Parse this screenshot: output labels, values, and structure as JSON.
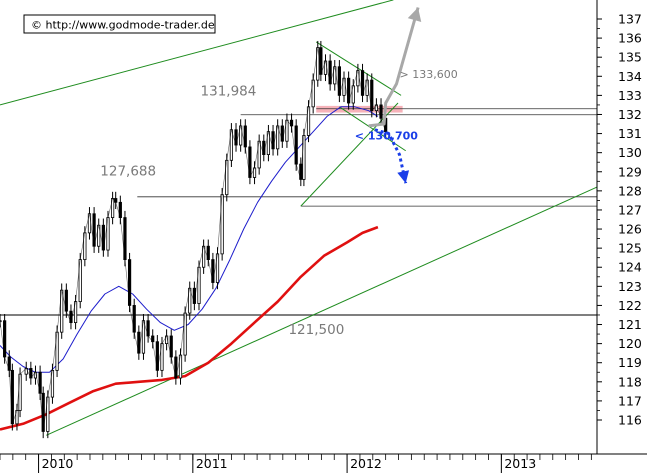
{
  "chart_data": {
    "type": "line",
    "title": "",
    "source_label": "© http://www.godmode-trader.de",
    "xlabel": "",
    "ylabel": "",
    "x_ticks": [
      "2010",
      "2011",
      "2012",
      "2013"
    ],
    "y_ticks": [
      116,
      117,
      118,
      119,
      120,
      121,
      122,
      123,
      124,
      125,
      126,
      127,
      128,
      129,
      130,
      131,
      132,
      133,
      134,
      135,
      136,
      137
    ],
    "ylim": [
      115.2,
      137.7
    ],
    "xlim": [
      2009.75,
      2013.62
    ],
    "y_axis_side": "right",
    "grid": false,
    "colors": {
      "price": "#000000",
      "ma_blue": "#1d1dcc",
      "ma_red": "#e01010",
      "trendline": "#1f8c1f",
      "horizontal": "#333333",
      "resistance_zone": "#f4a4ad",
      "arrow_up": "#a8a8a8",
      "arrow_down": "#1a3ee8",
      "annotation_gray": "#7a7a7a",
      "annotation_blue": "#1a3ee8"
    },
    "price_path": [
      [
        2009.75,
        121.2
      ],
      [
        2009.78,
        119.3
      ],
      [
        2009.81,
        118.6
      ],
      [
        2009.83,
        115.8
      ],
      [
        2009.86,
        116.5
      ],
      [
        2009.88,
        118.4
      ],
      [
        2009.92,
        118.7
      ],
      [
        2009.95,
        118.2
      ],
      [
        2009.98,
        118.5
      ],
      [
        2010.01,
        117.4
      ],
      [
        2010.03,
        115.4
      ],
      [
        2010.06,
        117.2
      ],
      [
        2010.09,
        118.6
      ],
      [
        2010.12,
        120.6
      ],
      [
        2010.15,
        122.8
      ],
      [
        2010.18,
        121.7
      ],
      [
        2010.21,
        121.1
      ],
      [
        2010.24,
        122.2
      ],
      [
        2010.27,
        124.4
      ],
      [
        2010.3,
        125.8
      ],
      [
        2010.33,
        126.8
      ],
      [
        2010.36,
        125.1
      ],
      [
        2010.39,
        126.2
      ],
      [
        2010.42,
        124.9
      ],
      [
        2010.45,
        126.6
      ],
      [
        2010.48,
        127.6
      ],
      [
        2010.5,
        127.4
      ],
      [
        2010.53,
        126.6
      ],
      [
        2010.56,
        124.4
      ],
      [
        2010.59,
        122.0
      ],
      [
        2010.62,
        120.6
      ],
      [
        2010.65,
        119.5
      ],
      [
        2010.68,
        121.2
      ],
      [
        2010.71,
        120.4
      ],
      [
        2010.74,
        120.1
      ],
      [
        2010.77,
        118.6
      ],
      [
        2010.8,
        120.0
      ],
      [
        2010.83,
        120.4
      ],
      [
        2010.86,
        119.3
      ],
      [
        2010.89,
        118.2
      ],
      [
        2010.92,
        119.4
      ],
      [
        2010.95,
        121.6
      ],
      [
        2010.98,
        122.9
      ],
      [
        2011.01,
        122.1
      ],
      [
        2011.04,
        124.0
      ],
      [
        2011.07,
        125.1
      ],
      [
        2011.1,
        124.4
      ],
      [
        2011.13,
        123.2
      ],
      [
        2011.16,
        124.7
      ],
      [
        2011.19,
        127.8
      ],
      [
        2011.22,
        129.6
      ],
      [
        2011.25,
        131.2
      ],
      [
        2011.28,
        130.4
      ],
      [
        2011.31,
        131.4
      ],
      [
        2011.34,
        130.3
      ],
      [
        2011.37,
        128.7
      ],
      [
        2011.4,
        129.2
      ],
      [
        2011.43,
        130.6
      ],
      [
        2011.46,
        129.9
      ],
      [
        2011.49,
        131.1
      ],
      [
        2011.52,
        130.2
      ],
      [
        2011.55,
        131.4
      ],
      [
        2011.58,
        130.6
      ],
      [
        2011.61,
        131.7
      ],
      [
        2011.64,
        131.4
      ],
      [
        2011.67,
        129.4
      ],
      [
        2011.7,
        128.6
      ],
      [
        2011.72,
        130.9
      ],
      [
        2011.75,
        132.4
      ],
      [
        2011.78,
        133.8
      ],
      [
        2011.81,
        135.5
      ],
      [
        2011.83,
        134.1
      ],
      [
        2011.86,
        134.8
      ],
      [
        2011.89,
        133.6
      ],
      [
        2011.92,
        134.5
      ],
      [
        2011.95,
        133.0
      ],
      [
        2011.98,
        133.9
      ],
      [
        2012.01,
        132.6
      ],
      [
        2012.04,
        133.5
      ],
      [
        2012.07,
        134.3
      ],
      [
        2012.1,
        133.0
      ],
      [
        2012.13,
        133.8
      ],
      [
        2012.16,
        132.2
      ],
      [
        2012.19,
        132.5
      ],
      [
        2012.22,
        131.8
      ],
      [
        2012.25,
        131.1
      ]
    ],
    "ma_blue_path": [
      [
        2009.75,
        119.9
      ],
      [
        2009.82,
        119.3
      ],
      [
        2009.9,
        118.8
      ],
      [
        2009.98,
        118.5
      ],
      [
        2010.07,
        118.5
      ],
      [
        2010.16,
        119.2
      ],
      [
        2010.25,
        120.5
      ],
      [
        2010.34,
        121.7
      ],
      [
        2010.43,
        122.6
      ],
      [
        2010.52,
        123.0
      ],
      [
        2010.61,
        122.6
      ],
      [
        2010.7,
        121.8
      ],
      [
        2010.79,
        121.1
      ],
      [
        2010.88,
        120.7
      ],
      [
        2010.97,
        121.0
      ],
      [
        2011.06,
        121.8
      ],
      [
        2011.15,
        122.9
      ],
      [
        2011.24,
        124.4
      ],
      [
        2011.33,
        126.0
      ],
      [
        2011.42,
        127.4
      ],
      [
        2011.51,
        128.5
      ],
      [
        2011.6,
        129.5
      ],
      [
        2011.69,
        130.3
      ],
      [
        2011.78,
        131.1
      ],
      [
        2011.87,
        131.9
      ],
      [
        2011.96,
        132.4
      ],
      [
        2012.05,
        132.4
      ],
      [
        2012.14,
        132.2
      ],
      [
        2012.2,
        131.9
      ]
    ],
    "ma_red_path": [
      [
        2009.75,
        115.5
      ],
      [
        2009.9,
        115.8
      ],
      [
        2010.05,
        116.3
      ],
      [
        2010.2,
        116.9
      ],
      [
        2010.35,
        117.5
      ],
      [
        2010.5,
        117.9
      ],
      [
        2010.65,
        118.0
      ],
      [
        2010.8,
        118.1
      ],
      [
        2010.95,
        118.3
      ],
      [
        2011.1,
        119.0
      ],
      [
        2011.25,
        120.0
      ],
      [
        2011.4,
        121.1
      ],
      [
        2011.55,
        122.2
      ],
      [
        2011.7,
        123.5
      ],
      [
        2011.85,
        124.6
      ],
      [
        2012.0,
        125.3
      ],
      [
        2012.1,
        125.8
      ],
      [
        2012.2,
        126.1
      ]
    ],
    "trend_lines": [
      [
        [
          2009.75,
          132.5
        ],
        [
          2012.3,
          138.0
        ]
      ],
      [
        [
          2010.05,
          115.2
        ],
        [
          2013.62,
          128.2
        ]
      ],
      [
        [
          2011.7,
          127.2
        ],
        [
          2012.33,
          132.6
        ]
      ],
      [
        [
          2011.8,
          135.8
        ],
        [
          2012.35,
          133.0
        ]
      ],
      [
        [
          2011.95,
          132.4
        ],
        [
          2012.38,
          130.1
        ]
      ]
    ],
    "horizontal_lines": [
      {
        "y": 121.5,
        "x_start": 2009.75
      },
      {
        "y": 127.688,
        "x_start": 2010.64
      },
      {
        "y": 131.984,
        "x_start": 2011.31
      },
      {
        "y": 127.2,
        "x_start": 2011.7
      },
      {
        "y": 132.3,
        "x_start": 2011.8
      }
    ],
    "resistance_zone": {
      "x_start": 2011.8,
      "x_end": 2012.36,
      "y_low": 132.1,
      "y_high": 132.45
    },
    "annotations": [
      {
        "text": "131,984",
        "x": 2011.05,
        "y": 133.0,
        "color": "#7a7a7a"
      },
      {
        "text": "127,688",
        "x": 2010.4,
        "y": 128.8,
        "color": "#7a7a7a"
      },
      {
        "text": "121,500",
        "x": 2011.62,
        "y": 120.5,
        "color": "#7a7a7a"
      },
      {
        "text": "> 133,600",
        "x": 2012.34,
        "y": 133.9,
        "color": "#7a7a7a"
      },
      {
        "text": "< 130,700",
        "x": 2012.05,
        "y": 130.7,
        "color": "#1a3ee8"
      }
    ],
    "arrow_up": {
      "path": [
        [
          2012.14,
          131.4
        ],
        [
          2012.24,
          131.5
        ],
        [
          2012.25,
          132.6
        ],
        [
          2012.32,
          133.6
        ],
        [
          2012.46,
          137.6
        ]
      ]
    },
    "arrow_down": {
      "path": [
        [
          2012.18,
          131.2
        ],
        [
          2012.27,
          131.0
        ],
        [
          2012.34,
          129.9
        ],
        [
          2012.38,
          128.4
        ]
      ]
    }
  }
}
